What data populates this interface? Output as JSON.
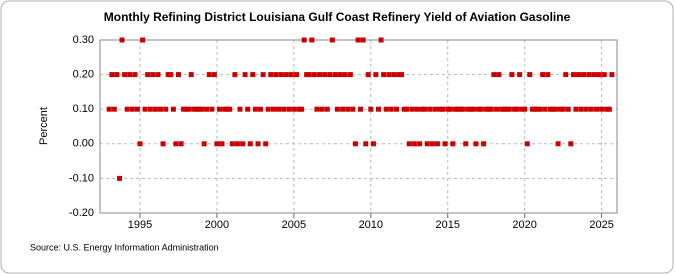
{
  "chart_data": {
    "type": "scatter",
    "title": "Monthly Refining District Louisiana Gulf Coast Refinery Yield of Aviation Gasoline",
    "y_label": "Percent",
    "source": "Source: U.S. Energy Information Administration",
    "color": "#cc0000",
    "grid": true,
    "xlim": [
      1992.4,
      2026.0
    ],
    "ylim": [
      -0.2,
      0.3
    ],
    "xticks": [
      1995,
      2000,
      2005,
      2010,
      2015,
      2020,
      2025
    ],
    "yticks": [
      {
        "value": -0.2,
        "label": "-0.20"
      },
      {
        "value": -0.1,
        "label": "-0.10"
      },
      {
        "value": 0,
        "label": "0.00"
      },
      {
        "value": 0.1,
        "label": "0.10"
      },
      {
        "value": 0.2,
        "label": "0.20"
      },
      {
        "value": 0.3,
        "label": "0.30"
      }
    ],
    "x": [
      1993.0,
      1993.17,
      1993.33,
      1993.5,
      1993.67,
      1993.83,
      1994.0,
      1994.17,
      1994.33,
      1994.5,
      1994.67,
      1994.83,
      1995.0,
      1995.17,
      1995.33,
      1995.5,
      1995.67,
      1995.83,
      1996.0,
      1996.17,
      1996.33,
      1996.5,
      1996.67,
      1996.83,
      1997.0,
      1997.17,
      1997.33,
      1997.5,
      1997.67,
      1997.83,
      1998.0,
      1998.17,
      1998.33,
      1998.5,
      1998.67,
      1998.83,
      1999.0,
      1999.17,
      1999.33,
      1999.5,
      1999.67,
      1999.83,
      2000.0,
      2000.17,
      2000.33,
      2000.5,
      2000.67,
      2000.83,
      2001.0,
      2001.17,
      2001.33,
      2001.5,
      2001.67,
      2001.83,
      2002.0,
      2002.17,
      2002.33,
      2002.5,
      2002.67,
      2002.83,
      2003.0,
      2003.17,
      2003.33,
      2003.5,
      2003.67,
      2003.83,
      2004.0,
      2004.17,
      2004.33,
      2004.5,
      2004.67,
      2004.83,
      2005.0,
      2005.17,
      2005.33,
      2005.5,
      2005.67,
      2005.83,
      2006.0,
      2006.17,
      2006.33,
      2006.5,
      2006.67,
      2006.83,
      2007.0,
      2007.17,
      2007.33,
      2007.5,
      2007.67,
      2007.83,
      2008.0,
      2008.17,
      2008.33,
      2008.5,
      2008.67,
      2008.83,
      2009.0,
      2009.17,
      2009.33,
      2009.5,
      2009.67,
      2009.83,
      2010.0,
      2010.17,
      2010.33,
      2010.5,
      2010.67,
      2010.83,
      2011.0,
      2011.17,
      2011.33,
      2011.5,
      2011.67,
      2011.83,
      2012.0,
      2012.17,
      2012.33,
      2012.5,
      2012.67,
      2012.83,
      2013.0,
      2013.17,
      2013.33,
      2013.5,
      2013.67,
      2013.83,
      2014.0,
      2014.17,
      2014.33,
      2014.5,
      2014.67,
      2014.83,
      2015.0,
      2015.17,
      2015.33,
      2015.5,
      2015.67,
      2015.83,
      2016.0,
      2016.17,
      2016.33,
      2016.5,
      2016.67,
      2016.83,
      2017.0,
      2017.17,
      2017.33,
      2017.5,
      2017.67,
      2017.83,
      2018.0,
      2018.17,
      2018.33,
      2018.5,
      2018.67,
      2018.83,
      2019.0,
      2019.17,
      2019.33,
      2019.5,
      2019.67,
      2019.83,
      2020.0,
      2020.17,
      2020.33,
      2020.5,
      2020.67,
      2020.83,
      2021.0,
      2021.17,
      2021.33,
      2021.5,
      2021.67,
      2021.83,
      2022.0,
      2022.17,
      2022.33,
      2022.5,
      2022.67,
      2022.83,
      2023.0,
      2023.17,
      2023.33,
      2023.5,
      2023.67,
      2023.83,
      2024.0,
      2024.17,
      2024.33,
      2024.5,
      2024.67,
      2024.83,
      2025.0,
      2025.17,
      2025.33,
      2025.5,
      2025.67
    ],
    "values": [
      0.1,
      0.2,
      0.1,
      0.2,
      -0.1,
      0.3,
      0.2,
      0.1,
      0.2,
      0.1,
      0.2,
      0.1,
      0.0,
      0.3,
      0.1,
      0.2,
      0.1,
      0.2,
      0.1,
      0.2,
      0.1,
      0.0,
      0.1,
      0.2,
      0.2,
      0.1,
      0.0,
      0.2,
      0.0,
      0.1,
      0.1,
      0.1,
      0.2,
      0.1,
      0.1,
      0.1,
      0.1,
      0.0,
      0.1,
      0.2,
      0.1,
      0.2,
      0.0,
      0.1,
      0.0,
      0.1,
      0.1,
      0.1,
      0.0,
      0.2,
      0.0,
      0.1,
      0.0,
      0.2,
      0.1,
      0.0,
      0.2,
      0.1,
      0.0,
      0.1,
      0.2,
      0.0,
      0.1,
      0.2,
      0.1,
      0.2,
      0.1,
      0.2,
      0.1,
      0.2,
      0.1,
      0.2,
      0.1,
      0.2,
      0.1,
      0.1,
      0.3,
      0.2,
      0.2,
      0.3,
      0.2,
      0.1,
      0.2,
      0.1,
      0.2,
      0.1,
      0.2,
      0.3,
      0.2,
      0.1,
      0.2,
      0.1,
      0.2,
      0.1,
      0.2,
      0.1,
      0.0,
      0.3,
      0.1,
      0.3,
      0.0,
      0.2,
      0.1,
      0.0,
      0.2,
      0.1,
      0.3,
      0.2,
      0.1,
      0.2,
      0.1,
      0.2,
      0.1,
      0.2,
      0.2,
      0.1,
      0.1,
      0.0,
      0.1,
      0.0,
      0.1,
      0.0,
      0.1,
      0.1,
      0.0,
      0.1,
      0.0,
      0.1,
      0.0,
      0.1,
      0.1,
      0.0,
      0.1,
      0.1,
      0.0,
      0.1,
      0.1,
      0.1,
      0.1,
      0.0,
      0.1,
      0.1,
      0.1,
      0.0,
      0.1,
      0.1,
      0.0,
      0.1,
      0.1,
      0.1,
      0.2,
      0.1,
      0.2,
      0.1,
      0.1,
      0.1,
      0.1,
      0.2,
      0.1,
      0.1,
      0.2,
      0.1,
      0.1,
      0.0,
      0.2,
      0.1,
      0.1,
      0.1,
      0.1,
      0.2,
      0.1,
      0.2,
      0.1,
      0.1,
      0.1,
      0.0,
      0.1,
      0.1,
      0.2,
      0.1,
      0.0,
      0.2,
      0.1,
      0.2,
      0.1,
      0.2,
      0.1,
      0.2,
      0.1,
      0.2,
      0.1,
      0.2,
      0.1,
      0.2,
      0.1,
      0.1,
      0.2
    ]
  }
}
